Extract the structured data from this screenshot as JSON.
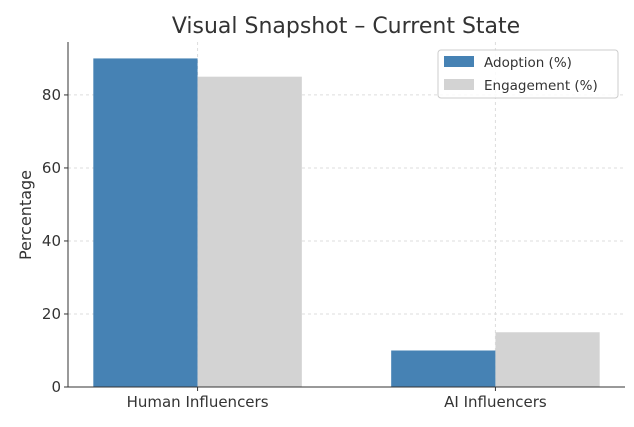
{
  "chart_data": {
    "type": "bar",
    "title": "Visual Snapshot – Current State",
    "xlabel": "",
    "ylabel": "Percentage",
    "categories": [
      "Human Influencers",
      "AI Influencers"
    ],
    "series": [
      {
        "name": "Adoption (%)",
        "values": [
          90,
          10
        ],
        "color": "#4682B4"
      },
      {
        "name": "Engagement (%)",
        "values": [
          85,
          15
        ],
        "color": "#D3D3D3"
      }
    ],
    "ylim": [
      0,
      94.5
    ],
    "yticks": [
      0,
      20,
      40,
      60,
      80
    ],
    "grid": true,
    "legend": "top-right"
  }
}
